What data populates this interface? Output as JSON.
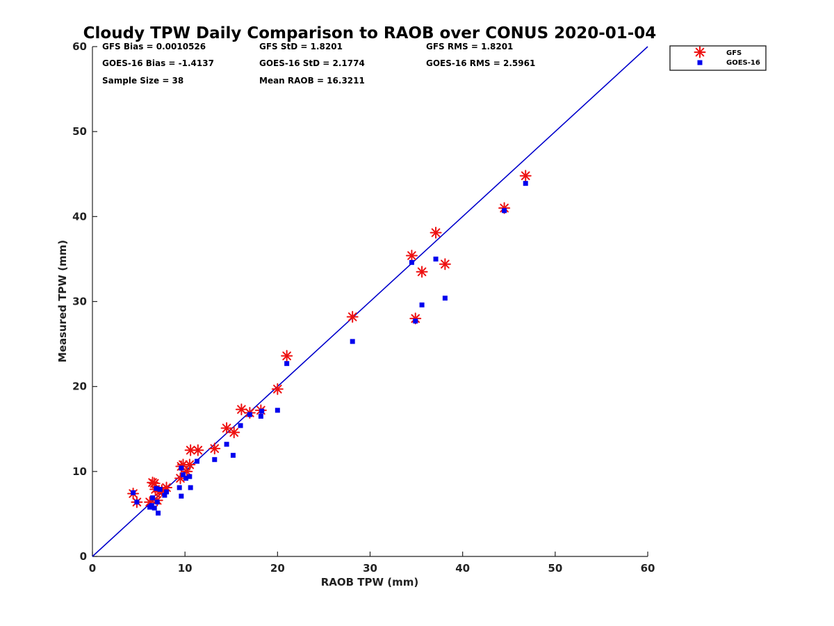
{
  "chart_data": {
    "type": "scatter",
    "title": "Cloudy TPW Daily Comparison to RAOB over CONUS 2020-01-04",
    "xlabel": "RAOB TPW (mm)",
    "ylabel": "Measured TPW (mm)",
    "xlim": [
      0,
      60
    ],
    "ylim": [
      0,
      60
    ],
    "xticks": [
      "0",
      "10",
      "20",
      "30",
      "40",
      "50",
      "60"
    ],
    "yticks": [
      "0",
      "10",
      "20",
      "30",
      "40",
      "50",
      "60"
    ],
    "grid": false,
    "legend_position": "outside-top-right",
    "reference_line": {
      "type": "1:1",
      "color": "#0000cc"
    },
    "stats": [
      "GFS Bias = 0.0010526",
      "GFS StD = 1.8201",
      "GFS RMS = 1.8201",
      "GOES-16 Bias = -1.4137",
      "GOES-16 StD = 2.1774",
      "GOES-16 RMS = 2.5961",
      "Sample Size = 38",
      "Mean RAOB = 16.3211"
    ],
    "series": [
      {
        "name": "GFS",
        "marker": "asterisk",
        "color": "#ee1111",
        "points": [
          [
            4.4,
            7.4
          ],
          [
            4.8,
            6.4
          ],
          [
            6.2,
            6.4
          ],
          [
            6.5,
            8.7
          ],
          [
            6.7,
            8.6
          ],
          [
            6.8,
            7.9
          ],
          [
            7.0,
            6.6
          ],
          [
            7.2,
            7.6
          ],
          [
            7.5,
            7.8
          ],
          [
            8.0,
            8.1
          ],
          [
            9.5,
            9.2
          ],
          [
            9.6,
            10.6
          ],
          [
            9.8,
            10.8
          ],
          [
            10.2,
            10.0
          ],
          [
            10.5,
            10.8
          ],
          [
            10.6,
            12.5
          ],
          [
            11.4,
            12.5
          ],
          [
            13.2,
            12.7
          ],
          [
            14.5,
            15.1
          ],
          [
            15.3,
            14.6
          ],
          [
            16.1,
            17.3
          ],
          [
            17.0,
            16.9
          ],
          [
            18.2,
            17.2
          ],
          [
            20.0,
            19.7
          ],
          [
            21.0,
            23.6
          ],
          [
            28.1,
            28.2
          ],
          [
            34.5,
            35.4
          ],
          [
            34.9,
            28.0
          ],
          [
            35.6,
            33.5
          ],
          [
            37.1,
            38.1
          ],
          [
            38.1,
            34.4
          ],
          [
            44.5,
            41.0
          ],
          [
            46.8,
            44.8
          ]
        ]
      },
      {
        "name": "GOES-16",
        "marker": "square",
        "color": "#0000ee",
        "points": [
          [
            4.4,
            7.5
          ],
          [
            4.8,
            6.4
          ],
          [
            6.2,
            5.8
          ],
          [
            6.4,
            6.0
          ],
          [
            6.5,
            6.9
          ],
          [
            6.7,
            5.7
          ],
          [
            6.9,
            8.0
          ],
          [
            7.0,
            6.4
          ],
          [
            7.1,
            5.1
          ],
          [
            7.3,
            7.9
          ],
          [
            7.8,
            7.2
          ],
          [
            8.0,
            7.6
          ],
          [
            9.4,
            8.1
          ],
          [
            9.6,
            7.1
          ],
          [
            9.6,
            10.4
          ],
          [
            9.8,
            9.6
          ],
          [
            10.1,
            9.2
          ],
          [
            10.5,
            9.4
          ],
          [
            10.6,
            8.1
          ],
          [
            11.3,
            11.2
          ],
          [
            13.2,
            11.4
          ],
          [
            14.5,
            13.2
          ],
          [
            15.2,
            11.9
          ],
          [
            16.0,
            15.4
          ],
          [
            17.0,
            16.7
          ],
          [
            18.2,
            16.5
          ],
          [
            18.3,
            17.1
          ],
          [
            20.0,
            17.2
          ],
          [
            21.0,
            22.7
          ],
          [
            28.1,
            25.3
          ],
          [
            34.5,
            34.6
          ],
          [
            34.9,
            27.7
          ],
          [
            35.6,
            29.6
          ],
          [
            37.1,
            35.0
          ],
          [
            38.1,
            30.4
          ],
          [
            44.5,
            40.7
          ],
          [
            46.8,
            43.9
          ]
        ]
      }
    ]
  }
}
